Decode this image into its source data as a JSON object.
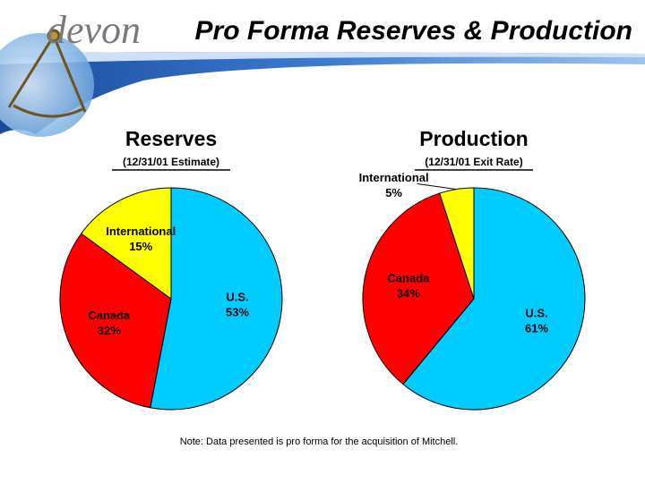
{
  "title": "Pro Forma Reserves & Production",
  "logo": "devon",
  "note": "Note: Data presented is pro forma for the acquisition of Mitchell.",
  "chart_data": [
    {
      "type": "pie",
      "title": "Reserves",
      "subtitle": "(12/31/01 Estimate)",
      "categories": [
        "U.S.",
        "Canada",
        "International"
      ],
      "values": [
        53,
        32,
        15
      ],
      "value_labels": [
        "53%",
        "32%",
        "15%"
      ],
      "colors": [
        "#00ccff",
        "#ff0000",
        "#ffff00"
      ]
    },
    {
      "type": "pie",
      "title": "Production",
      "subtitle": "(12/31/01 Exit Rate)",
      "categories": [
        "U.S.",
        "Canada",
        "International"
      ],
      "values": [
        61,
        34,
        5
      ],
      "value_labels": [
        "61%",
        "34%",
        "5%"
      ],
      "colors": [
        "#00ccff",
        "#ff0000",
        "#ffff00"
      ]
    }
  ]
}
